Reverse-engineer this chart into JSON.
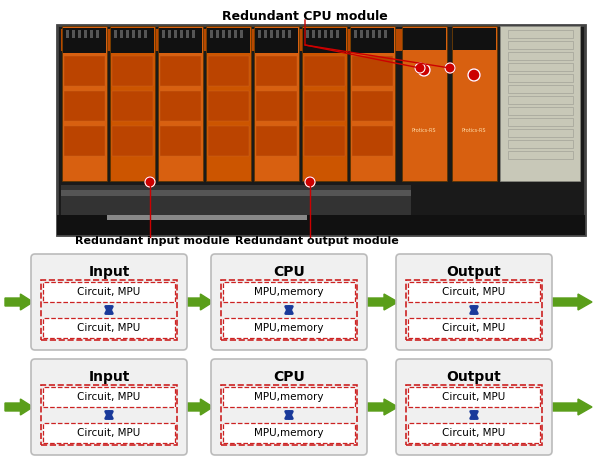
{
  "bg_color": "#ffffff",
  "top_label": "Redundant CPU module",
  "bottom_left_label": "Redundant input module",
  "bottom_right_label": "Redundant output module",
  "rows": [
    {
      "col1_title": "Input",
      "col1_sub1": "Circuit, MPU",
      "col1_sub2": "Circuit, MPU",
      "col2_title": "CPU",
      "col2_sub1": "MPU,memory",
      "col2_sub2": "MPU,memory",
      "col3_title": "Output",
      "col3_sub1": "Circuit, MPU",
      "col3_sub2": "Circuit, MPU"
    },
    {
      "col1_title": "Input",
      "col1_sub1": "Circuit, MPU",
      "col1_sub2": "Circuit, MPU",
      "col2_title": "CPU",
      "col2_sub1": "MPU,memory",
      "col2_sub2": "MPU,memory",
      "col3_title": "Output",
      "col3_sub1": "Circuit, MPU",
      "col3_sub2": "Circuit, MPU"
    }
  ],
  "inner_border_color": "#cc2222",
  "arrow_green": "#5a9e1a",
  "arrow_blue": "#1a3a9a",
  "title_font_size": 10,
  "sub_font_size": 7.5,
  "chassis_color": "#1a1a1a",
  "module_orange": "#d85e10",
  "module_dark_orange": "#c04400",
  "connector_black": "#111111",
  "gray_panel": "#c8c8b8",
  "red_dot_color": "#cc0000",
  "line_color": "#cc0000",
  "label_color": "#000000"
}
